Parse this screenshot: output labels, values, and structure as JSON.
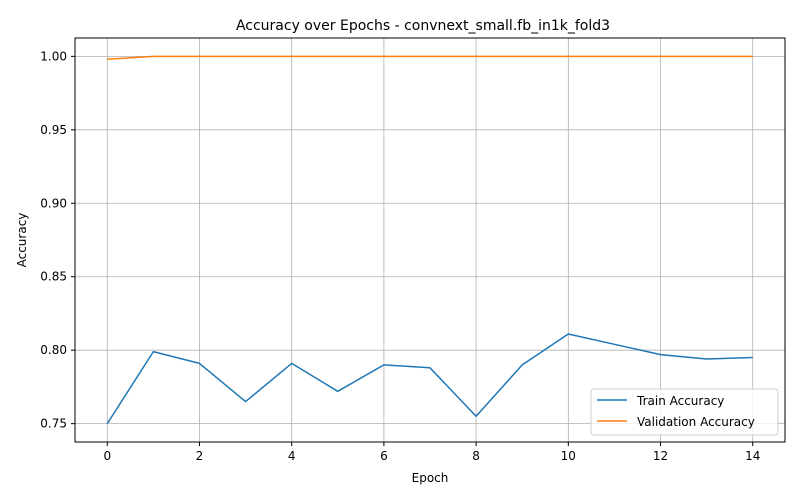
{
  "chart_data": {
    "type": "line",
    "title": "Accuracy over Epochs - convnext_small.fb_in1k_fold3",
    "xlabel": "Epoch",
    "ylabel": "Accuracy",
    "x": [
      0,
      1,
      2,
      3,
      4,
      5,
      6,
      7,
      8,
      9,
      10,
      11,
      12,
      13,
      14
    ],
    "xlim": [
      -0.7,
      14.7
    ],
    "ylim": [
      0.7375,
      1.0125
    ],
    "xticks": [
      0,
      2,
      4,
      6,
      8,
      10,
      12,
      14
    ],
    "yticks": [
      0.75,
      0.8,
      0.85,
      0.9,
      0.95,
      1.0
    ],
    "xtick_labels": [
      "0",
      "2",
      "4",
      "6",
      "8",
      "10",
      "12",
      "14"
    ],
    "ytick_labels": [
      "0.75",
      "0.80",
      "0.85",
      "0.90",
      "0.95",
      "1.00"
    ],
    "grid": true,
    "legend_position": "lower-right",
    "series": [
      {
        "name": "Train Accuracy",
        "color": "#1f77b4",
        "values": [
          0.75,
          0.799,
          0.791,
          0.765,
          0.791,
          0.772,
          0.79,
          0.788,
          0.755,
          0.79,
          0.811,
          0.804,
          0.797,
          0.794,
          0.795
        ]
      },
      {
        "name": "Validation Accuracy",
        "color": "#ff7f0e",
        "values": [
          0.998,
          1.0,
          1.0,
          1.0,
          1.0,
          1.0,
          1.0,
          1.0,
          1.0,
          1.0,
          1.0,
          1.0,
          1.0,
          1.0,
          1.0
        ]
      }
    ]
  }
}
